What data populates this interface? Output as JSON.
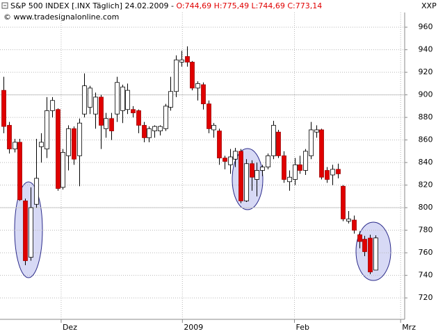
{
  "chart_data": {
    "type": "candlestick",
    "title": "S&P 500 INDEX [.INX  Täglich] 24.02.2009 - ",
    "quote": "O:744,69 H:775,49 L:744,69 C:773,14",
    "subtitle": "© www.tradesignalonline.com",
    "y_label": "XXP",
    "up_color": "#ffffff",
    "down_color": "#e00000",
    "quote_color": "#e00000",
    "grid": true,
    "ref_lines": [
      800,
      900
    ],
    "ylim": [
      701,
      973
    ],
    "yticks": [
      720,
      740,
      760,
      780,
      800,
      820,
      840,
      860,
      880,
      900,
      920,
      940,
      960
    ],
    "xlim": [
      -0.65,
      74.45
    ],
    "xticks": [
      {
        "value": 10.7,
        "label": "Dez"
      },
      {
        "value": 33.2,
        "label": "2009"
      },
      {
        "value": 54,
        "label": "Feb"
      },
      {
        "value": 73.7,
        "label": "Mrz"
      }
    ],
    "open": [
      904,
      873,
      852,
      858,
      806,
      756,
      803,
      854,
      852,
      886,
      887,
      818,
      846,
      870,
      846,
      883,
      889,
      883,
      898,
      870,
      879,
      883,
      886,
      887,
      887,
      886,
      873,
      862,
      868,
      868,
      870,
      889,
      903,
      929,
      934,
      929,
      906,
      909,
      892,
      869,
      868,
      844,
      838,
      843,
      850,
      806,
      839,
      825,
      833,
      836,
      846,
      867,
      846,
      823,
      825,
      838,
      833,
      846,
      867,
      869,
      833,
      829,
      834,
      819,
      788,
      789,
      776,
      772,
      773,
      744.69
    ],
    "high": [
      916,
      876,
      861,
      861,
      808,
      818,
      861,
      866,
      898,
      898,
      888,
      852,
      873,
      872,
      879,
      919,
      908,
      902,
      900,
      884,
      884,
      916,
      909,
      910,
      890,
      887,
      876,
      872,
      873,
      873,
      892,
      916,
      935,
      939,
      943,
      930,
      912,
      911,
      895,
      875,
      870,
      846,
      852,
      853,
      852,
      843,
      842,
      840,
      838,
      848,
      877,
      869,
      850,
      833,
      844,
      846,
      852,
      876,
      873,
      870,
      836,
      838,
      839,
      820,
      797,
      793,
      779,
      775,
      776,
      775.49
    ],
    "low": [
      866,
      848,
      849,
      806,
      749,
      753,
      800,
      840,
      844,
      880,
      815,
      816,
      833,
      838,
      819,
      880,
      883,
      870,
      852,
      862,
      860,
      876,
      875,
      883,
      880,
      866,
      858,
      858,
      862,
      864,
      868,
      886,
      898,
      925,
      925,
      904,
      895,
      887,
      866,
      862,
      838,
      834,
      830,
      836,
      804,
      805,
      815,
      810,
      828,
      834,
      843,
      844,
      822,
      815,
      820,
      830,
      829,
      843,
      862,
      825,
      822,
      820,
      826,
      788,
      786,
      777,
      764,
      757,
      741,
      744.69
    ],
    "close": [
      872,
      852,
      858,
      807,
      753,
      800,
      826,
      858,
      886,
      895,
      817,
      849,
      870,
      843,
      875,
      908,
      906,
      898,
      873,
      879,
      868,
      911,
      907,
      904,
      884,
      873,
      862,
      870,
      872,
      872,
      890,
      903,
      931,
      931,
      929,
      906,
      910,
      892,
      870,
      873,
      844,
      841,
      845,
      850,
      806,
      839,
      827,
      833,
      836,
      846,
      873,
      846,
      825,
      827,
      838,
      833,
      850,
      869,
      869,
      827,
      825,
      834,
      830,
      790,
      790,
      780,
      770,
      761,
      743,
      773.14
    ]
  }
}
